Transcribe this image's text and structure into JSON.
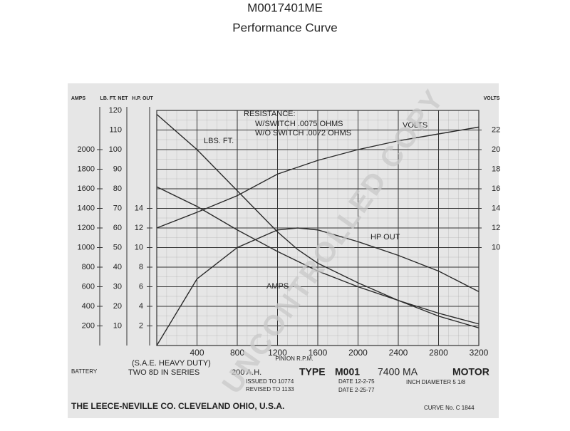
{
  "title": "M0017401ME",
  "subtitle": "Performance Curve",
  "chart_data": {
    "type": "line",
    "x_label": "PINION R.P.M.",
    "x": [
      0,
      400,
      800,
      1200,
      1400,
      1600,
      2000,
      2400,
      2800,
      3200
    ],
    "xlim": [
      0,
      3200
    ],
    "xticks": [
      400,
      800,
      1200,
      1600,
      2000,
      2400,
      2800,
      3200
    ],
    "grid": true,
    "y_axes": [
      {
        "label": "AMPS",
        "ylim": [
          0,
          2400
        ],
        "yticks": [
          200,
          400,
          600,
          800,
          1000,
          1200,
          1400,
          1600,
          1800,
          2000
        ]
      },
      {
        "label": "LB. FT. NET",
        "ylim": [
          0,
          120
        ],
        "yticks": [
          10,
          20,
          30,
          40,
          50,
          60,
          70,
          80,
          90,
          100,
          110,
          120
        ]
      },
      {
        "label": "H.P. OUT",
        "ylim": [
          0,
          24
        ],
        "yticks": [
          2,
          4,
          6,
          8,
          10,
          12,
          14
        ]
      },
      {
        "label": "VOLTS",
        "ylim": [
          0,
          24
        ],
        "yticks": [
          10,
          12,
          14,
          16,
          18,
          20,
          22
        ]
      }
    ],
    "series": [
      {
        "name": "LBS. FT.",
        "axis": 1,
        "color": "#2b2b2b",
        "values": [
          118,
          100,
          79,
          58,
          49,
          42,
          32,
          23,
          15,
          9
        ]
      },
      {
        "name": "AMPS",
        "axis": 0,
        "color": "#2b2b2b",
        "values": [
          1620,
          1420,
          1180,
          960,
          860,
          760,
          600,
          460,
          330,
          220
        ]
      },
      {
        "name": "HP OUT",
        "axis": 2,
        "color": "#2b2b2b",
        "values": [
          0,
          6.8,
          10,
          11.8,
          12,
          11.8,
          10.6,
          9.2,
          7.6,
          5.5
        ]
      },
      {
        "name": "VOLTS",
        "axis": 3,
        "color": "#2b2b2b",
        "values": [
          12,
          13.6,
          15.3,
          17.5,
          18.2,
          18.9,
          20,
          20.9,
          21.6,
          22.3
        ]
      }
    ],
    "annotations": [
      "RESISTANCE:",
      "W/SWITCH .0075 OHMS",
      "W/O SWITCH .0072 OHMS"
    ]
  },
  "footer": {
    "sae": "(S.A.E. HEAVY DUTY)",
    "battery_label": "BATTERY",
    "battery": "TWO 8D IN SERIES",
    "capacity": "200 A.H.",
    "type_label": "TYPE",
    "type": "M001",
    "model": "7400 MA",
    "kind": "MOTOR",
    "issued": "ISSUED TO 10774",
    "revised": "REVISED TO 1133",
    "date1": "DATE 12-2-75",
    "date2": "DATE 2-25-77",
    "diameter": "INCH DIAMETER 5 1/8",
    "company": "THE LEECE-NEVILLE CO. CLEVELAND OHIO, U.S.A.",
    "curve_no": "CURVE No. C 1844"
  },
  "watermark": "UNCONTROLLED COPY"
}
